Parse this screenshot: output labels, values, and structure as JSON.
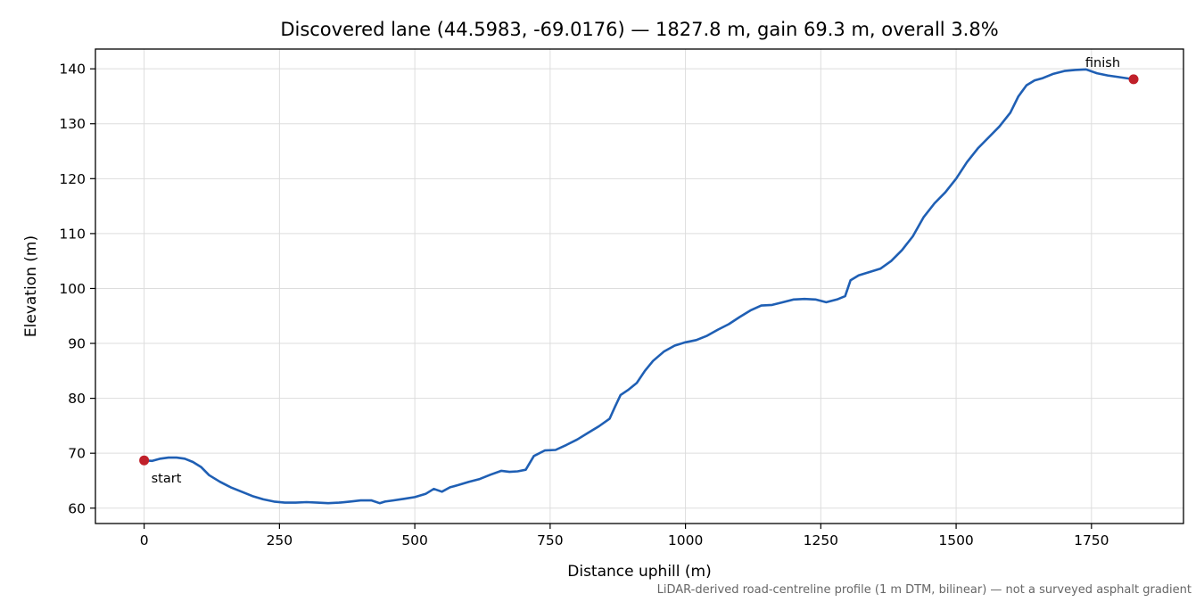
{
  "chart_data": {
    "type": "line",
    "title": "Discovered lane (44.5983, -69.0176) — 1827.8 m, gain 69.3 m, overall 3.8%",
    "xlabel": "Distance uphill (m)",
    "ylabel": "Elevation (m)",
    "xlim": [
      -90,
      1920
    ],
    "ylim": [
      57.2,
      143.6
    ],
    "x_ticks": [
      0,
      250,
      500,
      750,
      1000,
      1250,
      1500,
      1750
    ],
    "y_ticks": [
      60,
      70,
      80,
      90,
      100,
      110,
      120,
      130,
      140
    ],
    "grid": true,
    "line_color": "#1f5fb4",
    "marker_color": "#c0202a",
    "series": [
      {
        "x": [
          0,
          15,
          30,
          45,
          60,
          75,
          90,
          105,
          120,
          140,
          160,
          180,
          200,
          220,
          240,
          260,
          280,
          300,
          320,
          340,
          360,
          380,
          400,
          420,
          435,
          445,
          460,
          480,
          500,
          520,
          535,
          550,
          565,
          580,
          600,
          620,
          640,
          660,
          675,
          690,
          705,
          720,
          740,
          760,
          780,
          800,
          820,
          840,
          860,
          870,
          880,
          895,
          910,
          925,
          940,
          960,
          980,
          1000,
          1020,
          1040,
          1060,
          1080,
          1100,
          1120,
          1140,
          1160,
          1180,
          1200,
          1220,
          1240,
          1260,
          1280,
          1295,
          1305,
          1320,
          1340,
          1360,
          1380,
          1400,
          1420,
          1440,
          1460,
          1480,
          1500,
          1520,
          1540,
          1560,
          1580,
          1600,
          1615,
          1630,
          1645,
          1660,
          1680,
          1700,
          1720,
          1740,
          1760,
          1780,
          1800,
          1827.8
        ],
        "y": [
          68.7,
          68.6,
          69.0,
          69.2,
          69.2,
          69.0,
          68.4,
          67.5,
          66.0,
          64.8,
          63.8,
          63.0,
          62.2,
          61.6,
          61.2,
          61.0,
          61.0,
          61.1,
          61.0,
          60.9,
          61.0,
          61.2,
          61.4,
          61.4,
          60.9,
          61.2,
          61.4,
          61.7,
          62.0,
          62.6,
          63.5,
          63.0,
          63.8,
          64.2,
          64.8,
          65.3,
          66.1,
          66.8,
          66.6,
          66.7,
          67.0,
          69.5,
          70.5,
          70.6,
          71.5,
          72.5,
          73.7,
          74.9,
          76.3,
          78.5,
          80.6,
          81.6,
          82.8,
          85.0,
          86.8,
          88.5,
          89.6,
          90.2,
          90.6,
          91.4,
          92.5,
          93.5,
          94.8,
          96.0,
          96.9,
          97.0,
          97.5,
          98.0,
          98.1,
          98.0,
          97.5,
          98.0,
          98.6,
          101.5,
          102.4,
          103.0,
          103.6,
          105.0,
          107.0,
          109.5,
          113.0,
          115.5,
          117.5,
          120.0,
          123.0,
          125.5,
          127.5,
          129.5,
          132.0,
          135.0,
          137.0,
          137.9,
          138.3,
          139.1,
          139.6,
          139.8,
          139.9,
          139.2,
          138.8,
          138.5,
          138.1
        ]
      }
    ],
    "markers": [
      {
        "x": 0,
        "y": 68.7,
        "label": "start"
      },
      {
        "x": 1827.8,
        "y": 138.1,
        "label": "finish"
      }
    ],
    "footnote": "LiDAR-derived road-centreline profile (1 m DTM, bilinear) — not a surveyed asphalt gradient"
  }
}
